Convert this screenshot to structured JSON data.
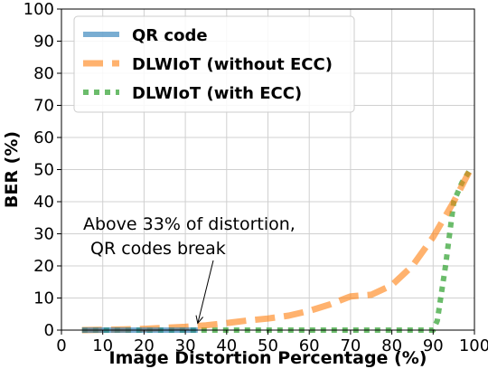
{
  "chart_data": {
    "type": "line",
    "xlabel": "Image Distortion Percentage (%)",
    "ylabel": "BER (%)",
    "xlim": [
      0,
      100
    ],
    "ylim": [
      0,
      100
    ],
    "xticks": [
      0,
      10,
      20,
      30,
      40,
      50,
      60,
      70,
      80,
      90,
      100
    ],
    "yticks": [
      0,
      10,
      20,
      30,
      40,
      50,
      60,
      70,
      80,
      90,
      100
    ],
    "grid": true,
    "legend_position": "top-left",
    "series": [
      {
        "name": "QR code",
        "color": "#1f77b4",
        "style": "solid",
        "x": [
          5,
          10,
          15,
          20,
          25,
          30,
          33
        ],
        "y": [
          0,
          0,
          0,
          0,
          0,
          0,
          0
        ]
      },
      {
        "name": "DLWIoT (without ECC)",
        "color": "#ff7f0e",
        "style": "dashed",
        "x": [
          5,
          10,
          15,
          20,
          25,
          30,
          35,
          40,
          45,
          50,
          55,
          60,
          65,
          70,
          75,
          80,
          85,
          90,
          95,
          99
        ],
        "y": [
          0,
          0.1,
          0.2,
          0.4,
          0.7,
          1,
          1.5,
          2.2,
          3,
          3.6,
          4.5,
          6,
          8,
          10.5,
          11,
          14,
          20,
          29,
          40,
          50
        ]
      },
      {
        "name": "DLWIoT (with ECC)",
        "color": "#2ca02c",
        "style": "dotted",
        "x": [
          5,
          10,
          20,
          30,
          40,
          50,
          60,
          70,
          80,
          85,
          90,
          91,
          93,
          95,
          97,
          99
        ],
        "y": [
          0,
          0,
          0,
          0,
          0,
          0,
          0,
          0,
          0,
          0,
          0,
          3,
          20,
          40,
          46,
          50
        ]
      }
    ],
    "annotation": {
      "lines": [
        "Above 33% of distortion,",
        "QR codes break"
      ],
      "target": [
        33,
        1
      ]
    }
  }
}
